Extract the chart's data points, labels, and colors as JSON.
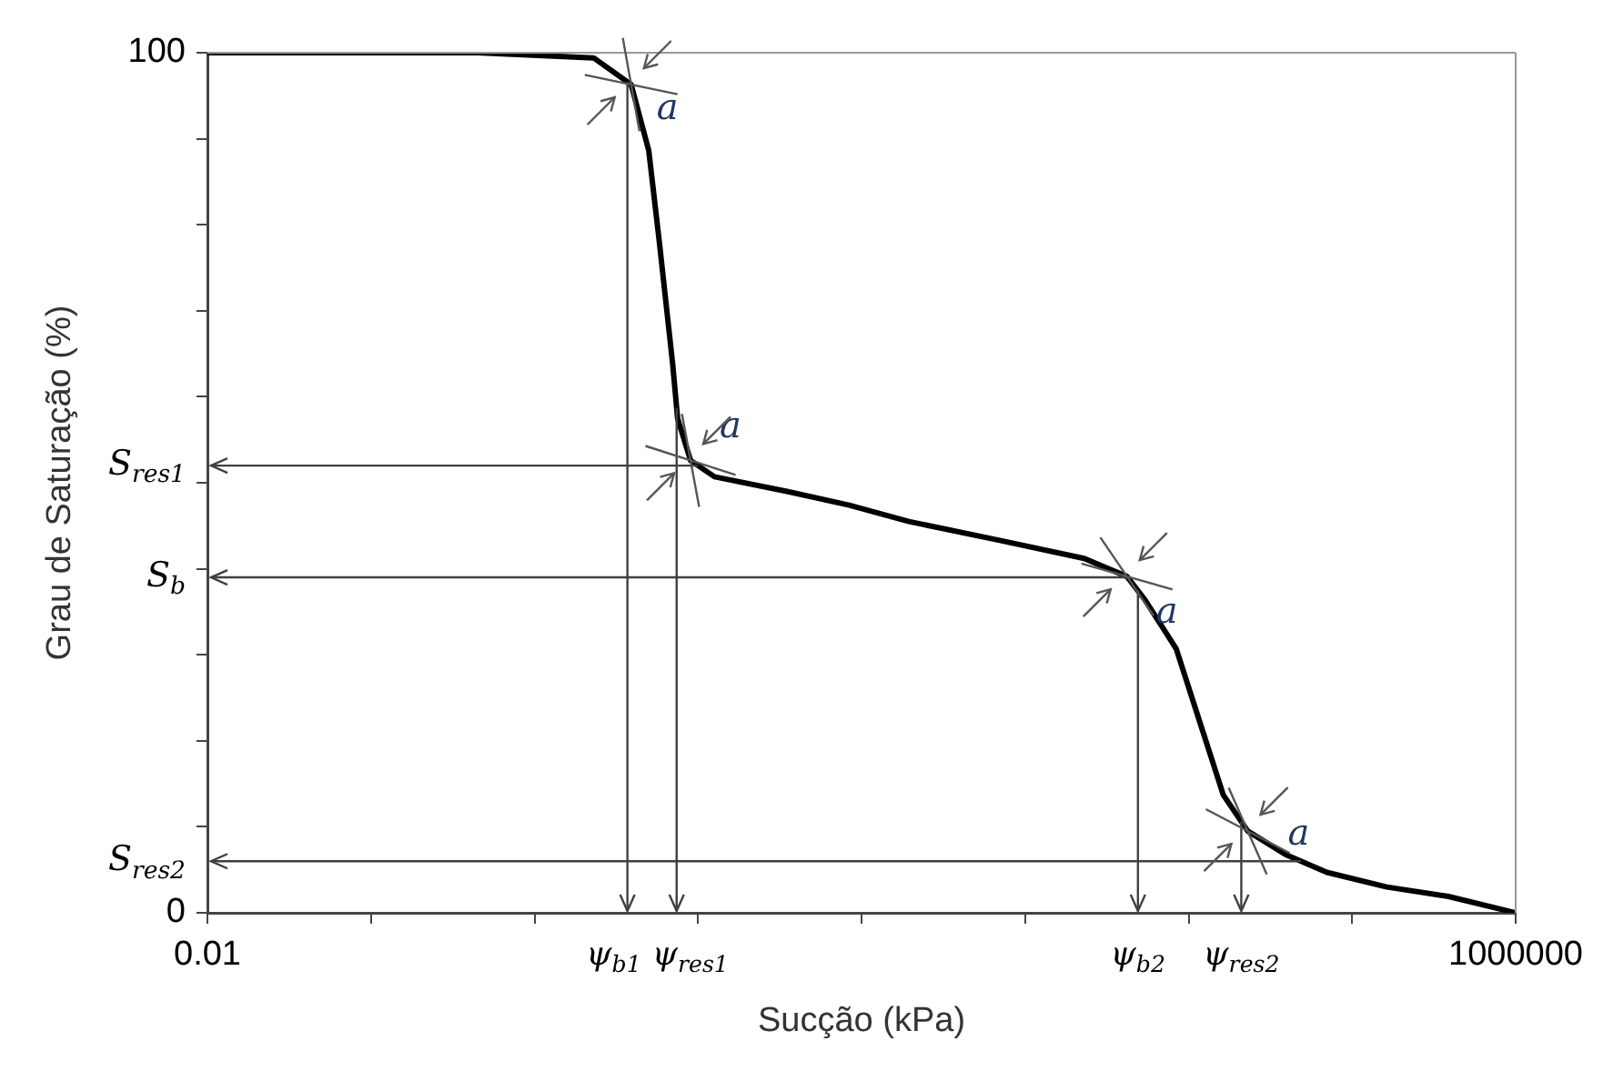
{
  "chart_data": {
    "type": "line",
    "xlabel": "Sucção (kPa)",
    "ylabel": "Grau de Saturação (%)",
    "log": "x",
    "xlim": [
      0.01,
      1000000
    ],
    "ylim": [
      0,
      100
    ],
    "xticks": [
      0.01,
      {
        "value": 0.1,
        "label": null
      },
      {
        "value": 1,
        "label": null
      },
      {
        "value": 10,
        "label": null
      },
      {
        "value": 100,
        "label": null
      },
      {
        "value": 1000,
        "label": null
      },
      {
        "value": 10000,
        "label": null
      },
      {
        "value": 100000,
        "label": null
      },
      1000000
    ],
    "yticks": [
      0,
      {
        "value": 10,
        "label": null
      },
      {
        "value": 20,
        "label": null
      },
      {
        "value": 30,
        "label": null
      },
      {
        "value": 40,
        "label": null
      },
      {
        "value": 50,
        "label": null
      },
      {
        "value": 60,
        "label": null
      },
      {
        "value": 70,
        "label": null
      },
      {
        "value": 80,
        "label": null
      },
      {
        "value": 90,
        "label": null
      },
      100
    ],
    "x": [
      0.01,
      0.09,
      0.45,
      2.3,
      3.9,
      5.0,
      5.8,
      7.0,
      7.5,
      9.0,
      12.6,
      35,
      84,
      195,
      700,
      2300,
      4200,
      5400,
      8400,
      11700,
      16300,
      23000,
      39000,
      70000,
      163000,
      388000,
      1000000
    ],
    "series": [
      {
        "color": "#000000",
        "values": [
          100,
          100,
          100,
          99.4,
          96.3,
          88.6,
          78,
          63.8,
          57.5,
          52.6,
          50.7,
          49,
          47.4,
          45.5,
          43.3,
          41.2,
          39.1,
          36.4,
          30.7,
          22.2,
          13.7,
          9.5,
          6.8,
          4.7,
          3.0,
          1.9,
          0
        ]
      }
    ],
    "ref_lines": [
      {
        "axis": "x",
        "value": 3.7,
        "label": "ψ$_{b1}$",
        "color": "#404040"
      },
      {
        "axis": "x",
        "value": 7.4,
        "label": "ψ$_{res1}$",
        "color": "#404040"
      },
      {
        "axis": "x",
        "value": 4900,
        "label": "ψ$_{b2}$",
        "color": "#404040"
      },
      {
        "axis": "x",
        "value": 21000,
        "label": "ψ$_{res2}$",
        "color": "#404040"
      },
      {
        "axis": "y",
        "value": 52,
        "label": "S$_{res1}$",
        "color": "#404040"
      },
      {
        "axis": "y",
        "value": 39,
        "label": "S$_{b}$",
        "color": "#404040"
      },
      {
        "axis": "y",
        "value": 6,
        "label": "S$_{res2}$",
        "color": "#404040"
      }
    ],
    "annotations": [
      {
        "text": "a",
        "x": 3.9,
        "y": 96.3
      },
      {
        "text": "a",
        "x": 9.0,
        "y": 52.6
      },
      {
        "text": "a",
        "x": 4200,
        "y": 39.1
      },
      {
        "text": "a",
        "x": 23000,
        "y": 9.5
      }
    ],
    "grid": false,
    "legend": false,
    "marker": "none",
    "line_style": "solid"
  }
}
